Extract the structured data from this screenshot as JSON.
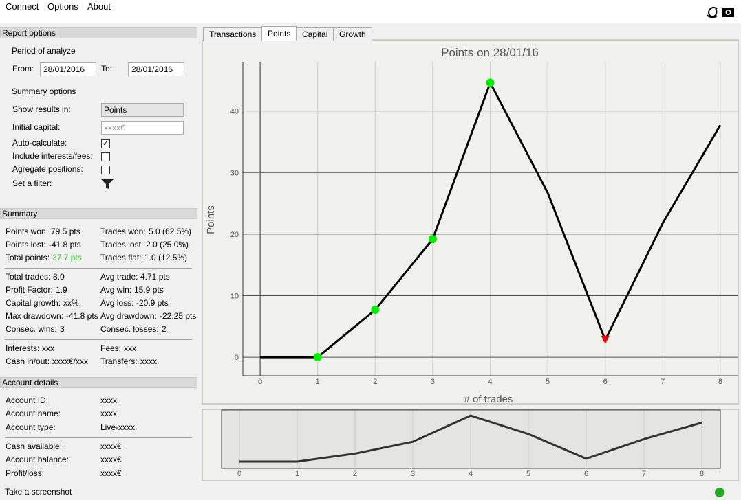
{
  "menu": [
    "Connect",
    "Options",
    "About"
  ],
  "report_options": {
    "title": "Report options",
    "period_label": "Period of analyze",
    "from_label": "From:",
    "from_value": "28/01/2016",
    "to_label": "To:",
    "to_value": "28/01/2016",
    "summary_label": "Summary options",
    "show_results_label": "Show results in:",
    "show_results_value": "Points",
    "initial_capital_label": "Initial capital:",
    "initial_capital_placeholder": "xxxx€",
    "checkboxes": [
      {
        "label": "Auto-calculate:",
        "checked": true
      },
      {
        "label": "Include interests/fees:",
        "checked": false
      },
      {
        "label": "Agregate positions:",
        "checked": false
      }
    ],
    "filter_label": "Set a filter:"
  },
  "summary": {
    "title": "Summary",
    "groups": [
      [
        [
          {
            "label": "Points won:",
            "value": "79.5 pts"
          },
          {
            "label": "Trades won:",
            "value": "5.0 (62.5%)"
          }
        ],
        [
          {
            "label": "Points lost:",
            "value": "-41.8 pts"
          },
          {
            "label": "Trades lost:",
            "value": "2.0 (25.0%)"
          }
        ],
        [
          {
            "label": "Total points:",
            "value": "37.7 pts",
            "value_color": "#2ec02e"
          },
          {
            "label": "Trades flat:",
            "value": "1.0 (12.5%)"
          }
        ]
      ],
      [
        [
          {
            "label": "Total trades:",
            "value": "8.0"
          },
          {
            "label": "Avg trade:",
            "value": "4.71 pts"
          }
        ],
        [
          {
            "label": "Profit Factor:",
            "value": "1.9"
          },
          {
            "label": "Avg win:",
            "value": "15.9 pts"
          }
        ],
        [
          {
            "label": "Capital growth:",
            "value": "xx%"
          },
          {
            "label": "Avg loss:",
            "value": "-20.9 pts"
          }
        ],
        [
          {
            "label": "Max drawdown:",
            "value": "-41.8 pts"
          },
          {
            "label": "Avg drawdown:",
            "value": "-22.25 pts"
          }
        ],
        [
          {
            "label": "Consec. wins:",
            "value": "3"
          },
          {
            "label": "Consec. losses:",
            "value": "2"
          }
        ]
      ],
      [
        [
          {
            "label": "Interests:",
            "value": "xxx"
          },
          {
            "label": "Fees:",
            "value": "xxx"
          }
        ],
        [
          {
            "label": "Cash in/out:",
            "value": "xxxx€/xxx"
          },
          {
            "label": "Transfers:",
            "value": "xxxx"
          }
        ]
      ]
    ]
  },
  "account_details": {
    "title": "Account details",
    "groups": [
      [
        {
          "label": "Account ID:",
          "value": "xxxx"
        },
        {
          "label": "Account name:",
          "value": "xxxx"
        },
        {
          "label": "Account type:",
          "value": "Live-xxxx"
        }
      ],
      [
        {
          "label": "Cash available:",
          "value": "xxxx€"
        },
        {
          "label": "Account balance:",
          "value": "xxxx€"
        },
        {
          "label": "Profit/loss:",
          "value": "xxxx€"
        }
      ]
    ]
  },
  "tabs": {
    "items": [
      "Transactions",
      "Points",
      "Capital",
      "Growth"
    ],
    "active": 1
  },
  "chart_data": {
    "type": "line",
    "title": "Points on 28/01/16",
    "x_label": "# of trades",
    "y_label": "Points",
    "x": [
      0,
      1,
      2,
      3,
      4,
      5,
      6,
      7,
      8
    ],
    "values": [
      0,
      0,
      7.7,
      19.2,
      44.6,
      26.7,
      2.8,
      21.8,
      37.7
    ],
    "color": "#000000",
    "marker_shapes": [
      null,
      "circle",
      "circle",
      "circle",
      "circle",
      null,
      "triangle",
      null,
      null
    ],
    "marker_colors": [
      null,
      "#00ee00",
      "#00ee00",
      "#00ee00",
      "#00ee00",
      null,
      "#ee0000",
      null,
      null
    ],
    "xlim": [
      -0.3,
      8.3
    ],
    "xticks": [
      0,
      1,
      2,
      3,
      4,
      5,
      6,
      7,
      8
    ],
    "ylim": [
      -3,
      48
    ],
    "yticks": [
      0,
      10,
      20,
      30,
      40
    ],
    "grid": true
  },
  "status": {
    "text": "Take a screenshot"
  }
}
